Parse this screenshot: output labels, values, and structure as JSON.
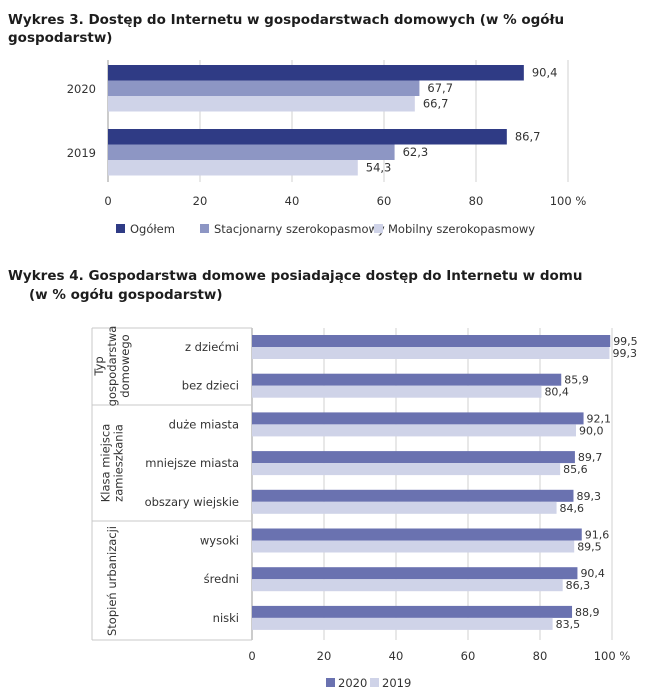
{
  "chart_data": [
    {
      "type": "bar",
      "orientation": "horizontal",
      "title": "Wykres 3. Dostęp do Internetu w gospodarstwach domowych (w % ogółu gospodarstw)",
      "categories": [
        "2020",
        "2019"
      ],
      "series": [
        {
          "name": "Ogółem",
          "values": [
            90.4,
            86.7
          ],
          "labels": [
            "90,4",
            "86,7"
          ],
          "color": "#2f3b85"
        },
        {
          "name": "Stacjonarny szerokopasmowy",
          "values": [
            67.7,
            62.3
          ],
          "labels": [
            "67,7",
            "62,3"
          ],
          "color": "#8d96c4"
        },
        {
          "name": "Mobilny szerokopasmowy",
          "values": [
            66.7,
            54.3
          ],
          "labels": [
            "66,7",
            "54,3"
          ],
          "color": "#cfd3e8"
        }
      ],
      "xlim": [
        0,
        100
      ],
      "ticks": [
        0,
        20,
        40,
        60,
        80,
        100
      ],
      "tick_labels": [
        "0",
        "20",
        "40",
        "60",
        "80",
        "100 %"
      ],
      "legend": "bottom",
      "grid": true
    },
    {
      "type": "bar",
      "orientation": "horizontal",
      "title_line1": "Wykres 4. Gospodarstwa domowe posiadające dostęp do Internetu w domu",
      "title_line2": "(w % ogółu gospodarstw)",
      "groups": [
        {
          "label_lines": [
            "Typ",
            "gospodarstwa",
            "domowego"
          ],
          "categories": [
            "z dziećmi",
            "bez dzieci"
          ]
        },
        {
          "label_lines": [
            "Klasa miejsca",
            "zamieszkania"
          ],
          "categories": [
            "duże miasta",
            "mniejsze miasta",
            "obszary wiejskie"
          ]
        },
        {
          "label_lines": [
            "Stopień urbanizacji"
          ],
          "categories": [
            "wysoki",
            "średni",
            "niski"
          ]
        }
      ],
      "categories": [
        "z dziećmi",
        "bez dzieci",
        "duże miasta",
        "mniejsze miasta",
        "obszary wiejskie",
        "wysoki",
        "średni",
        "niski"
      ],
      "series": [
        {
          "name": "2020",
          "values": [
            99.5,
            85.9,
            92.1,
            89.7,
            89.3,
            91.6,
            90.4,
            88.9
          ],
          "labels": [
            "99,5",
            "85,9",
            "92,1",
            "89,7",
            "89,3",
            "91,6",
            "90,4",
            "88,9"
          ],
          "color": "#6a72b0"
        },
        {
          "name": "2019",
          "values": [
            99.3,
            80.4,
            90.0,
            85.6,
            84.6,
            89.5,
            86.3,
            83.5
          ],
          "labels": [
            "99,3",
            "80,4",
            "90,0",
            "85,6",
            "84,6",
            "89,5",
            "86,3",
            "83,5"
          ],
          "color": "#cfd3e8"
        }
      ],
      "xlim": [
        0,
        100
      ],
      "ticks": [
        0,
        20,
        40,
        60,
        80,
        100
      ],
      "tick_labels": [
        "0",
        "20",
        "40",
        "60",
        "80",
        "100 %"
      ],
      "legend": "bottom",
      "grid": true
    }
  ]
}
